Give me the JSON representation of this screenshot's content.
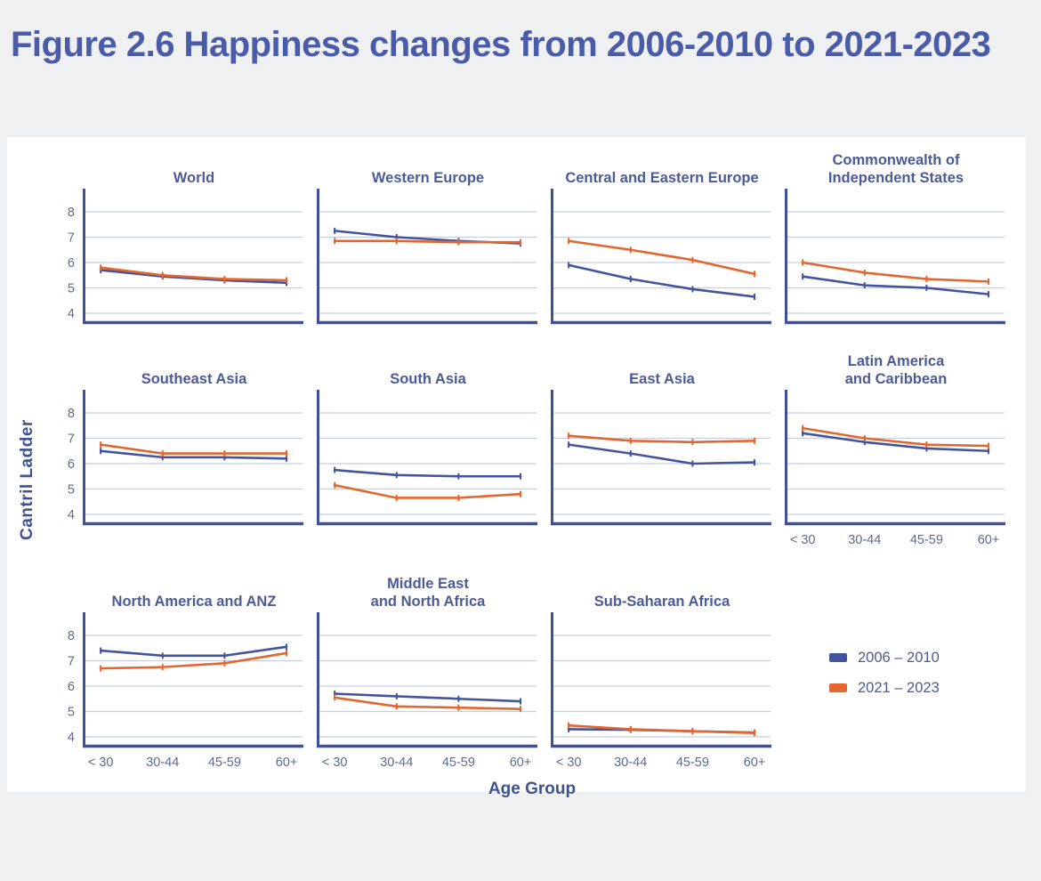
{
  "page": {
    "title": "Figure 2.6 Happiness changes from 2006-2010 to 2021-2023"
  },
  "colors": {
    "background": "#eef0f2",
    "card": "#ffffff",
    "title_blue": "#4a5ca9",
    "panel_title": "#4c5a97",
    "axis_navy": "#3e509c",
    "gridline": "#c8cddf",
    "tick_text": "#5e6a8b",
    "series_2006_2010": "#42549e",
    "series_2021_2023": "#e3662e"
  },
  "chart_data": {
    "type": "line",
    "categories": [
      "< 30",
      "30-44",
      "45-59",
      "60+"
    ],
    "xlabel": "Age Group",
    "ylabel": "Cantril Ladder",
    "ylim": [
      4,
      8
    ],
    "yticks": [
      4,
      5,
      6,
      7,
      8
    ],
    "grid": "horizontal",
    "legend_position": "bottom-right-cell",
    "legend": [
      {
        "name": "2006 – 2010",
        "color": "#42549e"
      },
      {
        "name": "2021 – 2023",
        "color": "#e3662e"
      }
    ],
    "panels": [
      {
        "title": "World",
        "show_y_ticks": true,
        "show_x_labels": false,
        "series": [
          {
            "name": "2006 – 2010",
            "values": [
              5.7,
              5.45,
              5.3,
              5.2
            ]
          },
          {
            "name": "2021 – 2023",
            "values": [
              5.8,
              5.5,
              5.35,
              5.3
            ]
          }
        ]
      },
      {
        "title": "Western Europe",
        "show_y_ticks": false,
        "show_x_labels": false,
        "series": [
          {
            "name": "2006 – 2010",
            "values": [
              7.25,
              7.0,
              6.85,
              6.75
            ]
          },
          {
            "name": "2021 – 2023",
            "values": [
              6.85,
              6.85,
              6.8,
              6.8
            ]
          }
        ]
      },
      {
        "title": "Central and Eastern Europe",
        "show_y_ticks": false,
        "show_x_labels": false,
        "series": [
          {
            "name": "2006 – 2010",
            "values": [
              5.9,
              5.35,
              4.95,
              4.65
            ]
          },
          {
            "name": "2021 – 2023",
            "values": [
              6.85,
              6.5,
              6.1,
              5.55
            ]
          }
        ]
      },
      {
        "title": "Commonwealth of\nIndependent States",
        "show_y_ticks": false,
        "show_x_labels": false,
        "series": [
          {
            "name": "2006 – 2010",
            "values": [
              5.45,
              5.1,
              5.0,
              4.75
            ]
          },
          {
            "name": "2021 – 2023",
            "values": [
              6.0,
              5.6,
              5.35,
              5.25
            ]
          }
        ]
      },
      {
        "title": "Southeast Asia",
        "show_y_ticks": true,
        "show_x_labels": false,
        "series": [
          {
            "name": "2006 – 2010",
            "values": [
              6.5,
              6.25,
              6.25,
              6.2
            ]
          },
          {
            "name": "2021 – 2023",
            "values": [
              6.75,
              6.4,
              6.4,
              6.4
            ]
          }
        ]
      },
      {
        "title": "South Asia",
        "show_y_ticks": false,
        "show_x_labels": false,
        "series": [
          {
            "name": "2006 – 2010",
            "values": [
              5.75,
              5.55,
              5.5,
              5.5
            ]
          },
          {
            "name": "2021 – 2023",
            "values": [
              5.15,
              4.65,
              4.65,
              4.8
            ]
          }
        ]
      },
      {
        "title": "East Asia",
        "show_y_ticks": false,
        "show_x_labels": false,
        "series": [
          {
            "name": "2006 – 2010",
            "values": [
              6.75,
              6.4,
              6.0,
              6.05
            ]
          },
          {
            "name": "2021 – 2023",
            "values": [
              7.1,
              6.9,
              6.85,
              6.9
            ]
          }
        ]
      },
      {
        "title": "Latin America\nand Caribbean",
        "show_y_ticks": false,
        "show_x_labels": true,
        "series": [
          {
            "name": "2006 – 2010",
            "values": [
              7.2,
              6.85,
              6.6,
              6.5
            ]
          },
          {
            "name": "2021 – 2023",
            "values": [
              7.4,
              7.0,
              6.75,
              6.7
            ]
          }
        ]
      },
      {
        "title": "North America and ANZ",
        "show_y_ticks": true,
        "show_x_labels": true,
        "series": [
          {
            "name": "2006 – 2010",
            "values": [
              7.4,
              7.2,
              7.2,
              7.55
            ]
          },
          {
            "name": "2021 – 2023",
            "values": [
              6.7,
              6.75,
              6.9,
              7.3
            ]
          }
        ]
      },
      {
        "title": "Middle East\nand North Africa",
        "show_y_ticks": false,
        "show_x_labels": true,
        "series": [
          {
            "name": "2006 – 2010",
            "values": [
              5.7,
              5.6,
              5.5,
              5.4
            ]
          },
          {
            "name": "2021 – 2023",
            "values": [
              5.55,
              5.2,
              5.15,
              5.1
            ]
          }
        ]
      },
      {
        "title": "Sub-Saharan Africa",
        "show_y_ticks": false,
        "show_x_labels": true,
        "series": [
          {
            "name": "2006 – 2010",
            "values": [
              4.3,
              4.28,
              4.22,
              4.17
            ]
          },
          {
            "name": "2021 – 2023",
            "values": [
              4.45,
              4.3,
              4.22,
              4.15
            ]
          }
        ]
      }
    ]
  }
}
